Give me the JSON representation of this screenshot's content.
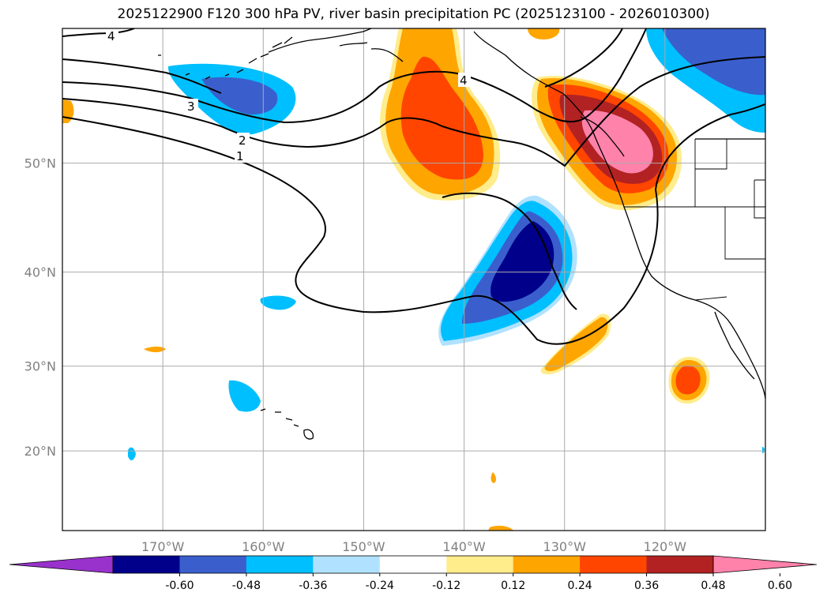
{
  "title": "2025122900 F120 300 hPa PV, river basin precipitation PC (2025123100 - 2026010300)",
  "map": {
    "lon_range": [
      -180,
      -110
    ],
    "lat_range": [
      10,
      60
    ],
    "lon_ticks": [
      {
        "value": -170,
        "label": "170°W"
      },
      {
        "value": -160,
        "label": "160°W"
      },
      {
        "value": -150,
        "label": "150°W"
      },
      {
        "value": -140,
        "label": "140°W"
      },
      {
        "value": -130,
        "label": "130°W"
      },
      {
        "value": -120,
        "label": "120°W"
      }
    ],
    "lat_ticks": [
      {
        "value": 50,
        "label": "50°N"
      },
      {
        "value": 40,
        "label": "40°N"
      },
      {
        "value": 30,
        "label": "30°N"
      },
      {
        "value": 20,
        "label": "20°N"
      }
    ],
    "grid": true,
    "pv_contour_labels": [
      "1",
      "2",
      "3",
      "4",
      "4"
    ]
  },
  "colorbar": {
    "levels": [
      "-0.60",
      "-0.48",
      "-0.36",
      "-0.24",
      "-0.12",
      "0.12",
      "0.24",
      "0.36",
      "0.48",
      "0.60"
    ],
    "colors": [
      "#9932CC",
      "#00008B",
      "#3A5FCD",
      "#00BFFF",
      "#B0E2FF",
      "#FFFFFF",
      "#FFEC8B",
      "#FFA500",
      "#FF4500",
      "#B22222",
      "#FF82AB"
    ]
  }
}
